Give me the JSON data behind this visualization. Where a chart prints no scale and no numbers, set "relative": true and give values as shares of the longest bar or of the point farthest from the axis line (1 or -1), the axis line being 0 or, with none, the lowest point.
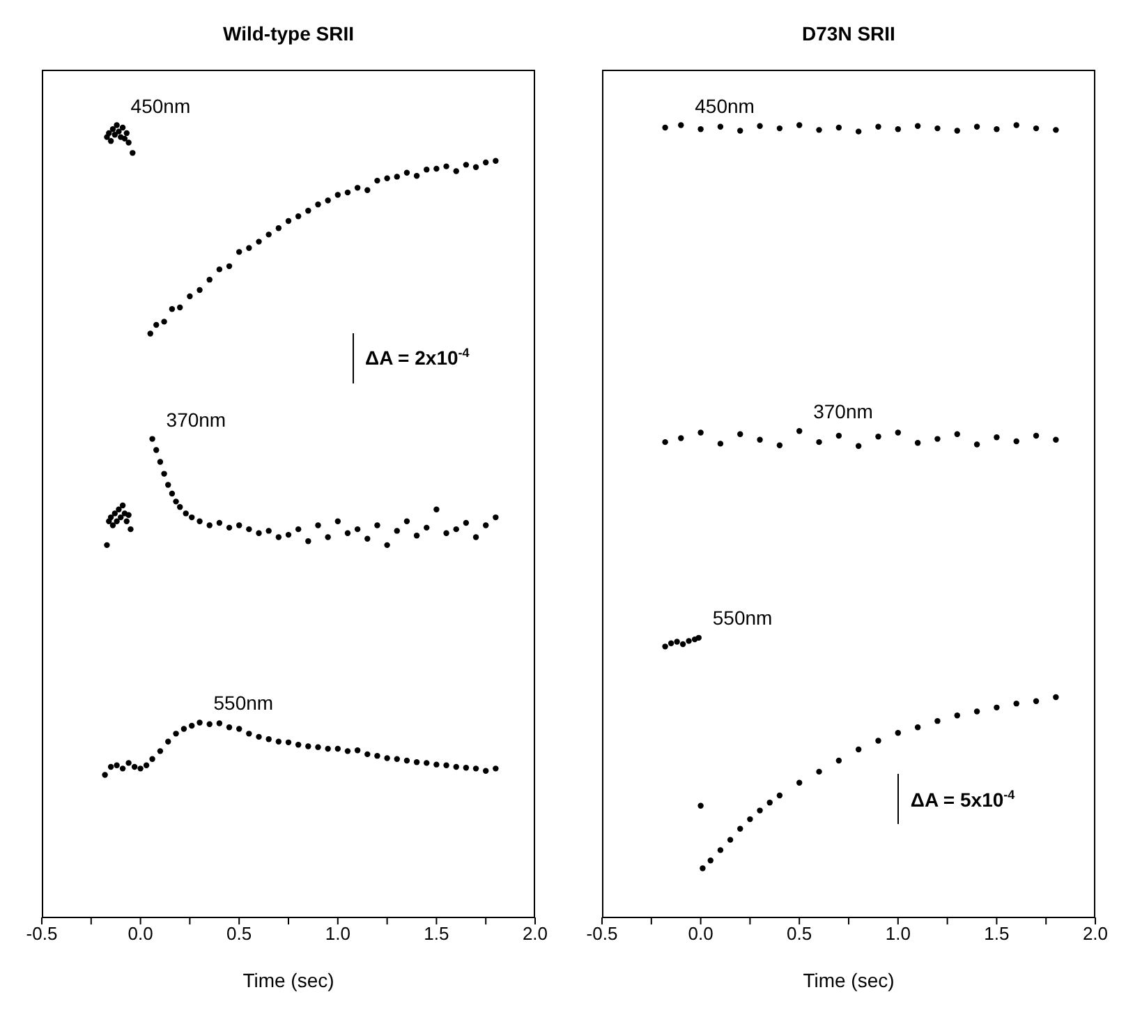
{
  "chart_data": [
    {
      "type": "scatter",
      "title": "Wild-type SRII",
      "xlabel": "Time (sec)",
      "xlim": [
        -0.5,
        2.0
      ],
      "xticks": [
        -0.5,
        {
          "value": -0.25,
          "label": null
        },
        {
          "value": 0,
          "label": "0.0"
        },
        {
          "value": 0.25,
          "label": null
        },
        0.5,
        {
          "value": 0.75,
          "label": null
        },
        {
          "value": 1,
          "label": "1.0"
        },
        {
          "value": 1.25,
          "label": null
        },
        1.5,
        {
          "value": 1.75,
          "label": null
        },
        {
          "value": 2,
          "label": "2.0"
        }
      ],
      "relative": true,
      "marker": "circle",
      "annotations": [
        "ΔA = 2x10$^{-4}$"
      ],
      "series": [
        {
          "name": "450nm",
          "color": "#000000",
          "x": [
            -0.17,
            -0.16,
            -0.15,
            -0.14,
            -0.13,
            -0.12,
            -0.11,
            -0.1,
            -0.09,
            -0.08,
            -0.07,
            -0.06,
            -0.04,
            0.05,
            0.08,
            0.12,
            0.16,
            0.2,
            0.25,
            0.3,
            0.35,
            0.4,
            0.45,
            0.5,
            0.55,
            0.6,
            0.65,
            0.7,
            0.75,
            0.8,
            0.85,
            0.9,
            0.95,
            1.0,
            1.05,
            1.1,
            1.15,
            1.2,
            1.25,
            1.3,
            1.35,
            1.4,
            1.45,
            1.5,
            1.55,
            1.6,
            1.65,
            1.7,
            1.75,
            1.8
          ],
          "values": [
            0.985,
            0.99,
            0.98,
            0.995,
            0.988,
            1.0,
            0.992,
            0.985,
            0.997,
            0.983,
            0.99,
            0.978,
            0.965,
            0.737,
            0.748,
            0.752,
            0.768,
            0.77,
            0.784,
            0.792,
            0.805,
            0.818,
            0.822,
            0.84,
            0.845,
            0.853,
            0.862,
            0.87,
            0.879,
            0.885,
            0.892,
            0.9,
            0.905,
            0.912,
            0.915,
            0.921,
            0.918,
            0.93,
            0.933,
            0.935,
            0.94,
            0.936,
            0.944,
            0.945,
            0.948,
            0.942,
            0.95,
            0.947,
            0.953,
            0.955
          ]
        },
        {
          "name": "370nm",
          "color": "#000000",
          "x": [
            -0.17,
            -0.16,
            -0.15,
            -0.14,
            -0.13,
            -0.12,
            -0.11,
            -0.1,
            -0.09,
            -0.08,
            -0.07,
            -0.06,
            -0.05,
            0.06,
            0.08,
            0.1,
            0.12,
            0.14,
            0.16,
            0.18,
            0.2,
            0.23,
            0.26,
            0.3,
            0.35,
            0.4,
            0.45,
            0.5,
            0.55,
            0.6,
            0.65,
            0.7,
            0.75,
            0.8,
            0.85,
            0.9,
            0.95,
            1.0,
            1.05,
            1.1,
            1.15,
            1.2,
            1.25,
            1.3,
            1.35,
            1.4,
            1.45,
            1.5,
            1.55,
            1.6,
            1.65,
            1.7,
            1.75,
            1.8
          ],
          "values": [
            0.47,
            0.5,
            0.505,
            0.495,
            0.51,
            0.5,
            0.515,
            0.505,
            0.52,
            0.51,
            0.5,
            0.508,
            0.49,
            0.604,
            0.59,
            0.575,
            0.56,
            0.546,
            0.535,
            0.525,
            0.518,
            0.51,
            0.505,
            0.5,
            0.495,
            0.498,
            0.492,
            0.495,
            0.49,
            0.485,
            0.488,
            0.48,
            0.483,
            0.49,
            0.475,
            0.495,
            0.48,
            0.5,
            0.485,
            0.49,
            0.478,
            0.495,
            0.47,
            0.488,
            0.5,
            0.482,
            0.492,
            0.515,
            0.485,
            0.49,
            0.498,
            0.48,
            0.495,
            0.505
          ]
        },
        {
          "name": "550nm",
          "color": "#000000",
          "x": [
            -0.18,
            -0.15,
            -0.12,
            -0.09,
            -0.06,
            -0.03,
            0,
            0.03,
            0.06,
            0.1,
            0.14,
            0.18,
            0.22,
            0.26,
            0.3,
            0.35,
            0.4,
            0.45,
            0.5,
            0.55,
            0.6,
            0.65,
            0.7,
            0.75,
            0.8,
            0.85,
            0.9,
            0.95,
            1.0,
            1.05,
            1.1,
            1.15,
            1.2,
            1.25,
            1.3,
            1.35,
            1.4,
            1.45,
            1.5,
            1.55,
            1.6,
            1.65,
            1.7,
            1.75,
            1.8
          ],
          "values": [
            0.18,
            0.19,
            0.192,
            0.188,
            0.195,
            0.19,
            0.188,
            0.192,
            0.2,
            0.21,
            0.222,
            0.232,
            0.238,
            0.242,
            0.246,
            0.244,
            0.245,
            0.24,
            0.238,
            0.232,
            0.228,
            0.225,
            0.222,
            0.221,
            0.218,
            0.216,
            0.215,
            0.213,
            0.213,
            0.21,
            0.211,
            0.206,
            0.204,
            0.201,
            0.2,
            0.198,
            0.196,
            0.195,
            0.193,
            0.192,
            0.19,
            0.189,
            0.188,
            0.185,
            0.188
          ]
        }
      ]
    },
    {
      "type": "scatter",
      "title": "D73N SRII",
      "xlabel": "Time (sec)",
      "xlim": [
        -0.5,
        2.0
      ],
      "xticks": [
        -0.5,
        {
          "value": -0.25,
          "label": null
        },
        {
          "value": 0,
          "label": "0.0"
        },
        {
          "value": 0.25,
          "label": null
        },
        0.5,
        {
          "value": 0.75,
          "label": null
        },
        {
          "value": 1,
          "label": "1.0"
        },
        {
          "value": 1.25,
          "label": null
        },
        1.5,
        {
          "value": 1.75,
          "label": null
        },
        {
          "value": 2,
          "label": "2.0"
        }
      ],
      "relative": true,
      "marker": "circle",
      "annotations": [
        "ΔA = 5x10$^{-4}$"
      ],
      "series": [
        {
          "name": "450nm",
          "color": "#000000",
          "x": [
            -0.18,
            -0.1,
            0,
            0.1,
            0.2,
            0.3,
            0.4,
            0.5,
            0.6,
            0.7,
            0.8,
            0.9,
            1.0,
            1.1,
            1.2,
            1.3,
            1.4,
            1.5,
            1.6,
            1.7,
            1.8
          ],
          "values": [
            0.997,
            1.0,
            0.995,
            0.998,
            0.993,
            0.999,
            0.996,
            1.0,
            0.994,
            0.997,
            0.992,
            0.998,
            0.995,
            0.999,
            0.996,
            0.993,
            0.998,
            0.995,
            1.0,
            0.996,
            0.994
          ]
        },
        {
          "name": "370nm",
          "color": "#000000",
          "x": [
            -0.18,
            -0.1,
            0,
            0.1,
            0.2,
            0.3,
            0.4,
            0.5,
            0.6,
            0.7,
            0.8,
            0.9,
            1.0,
            1.1,
            1.2,
            1.3,
            1.4,
            1.5,
            1.6,
            1.7,
            1.8
          ],
          "values": [
            0.6,
            0.605,
            0.612,
            0.598,
            0.61,
            0.603,
            0.596,
            0.614,
            0.6,
            0.608,
            0.595,
            0.607,
            0.612,
            0.599,
            0.604,
            0.61,
            0.597,
            0.606,
            0.601,
            0.608,
            0.603
          ]
        },
        {
          "name": "550nm",
          "color": "#000000",
          "x": [
            -0.18,
            -0.15,
            -0.12,
            -0.09,
            -0.06,
            -0.03,
            -0.01,
            0.0,
            0.01,
            0.05,
            0.1,
            0.15,
            0.2,
            0.25,
            0.3,
            0.35,
            0.4,
            0.5,
            0.6,
            0.7,
            0.8,
            0.9,
            1.0,
            1.1,
            1.2,
            1.3,
            1.4,
            1.5,
            1.6,
            1.7,
            1.8
          ],
          "values": [
            0.342,
            0.346,
            0.348,
            0.345,
            0.349,
            0.351,
            0.353,
            0.141,
            0.062,
            0.072,
            0.085,
            0.098,
            0.112,
            0.124,
            0.135,
            0.145,
            0.154,
            0.17,
            0.184,
            0.198,
            0.212,
            0.223,
            0.233,
            0.24,
            0.248,
            0.255,
            0.26,
            0.265,
            0.27,
            0.273,
            0.278
          ]
        }
      ]
    }
  ]
}
